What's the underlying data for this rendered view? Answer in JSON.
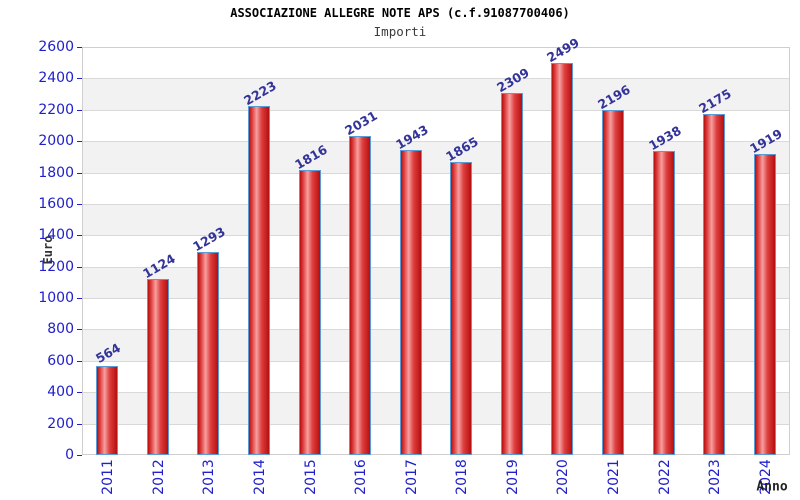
{
  "chart_data": {
    "type": "bar",
    "title": "ASSOCIAZIONE ALLEGRE NOTE APS (c.f.91087700406)",
    "subtitle": "Importi",
    "xlabel": "Anno",
    "ylabel": "Euro",
    "categories": [
      "2011",
      "2012",
      "2013",
      "2014",
      "2015",
      "2016",
      "2017",
      "2018",
      "2019",
      "2020",
      "2021",
      "2022",
      "2023",
      "2024"
    ],
    "values": [
      564,
      1124,
      1293,
      2223,
      1816,
      2031,
      1943,
      1865,
      2309,
      2499,
      2196,
      1938,
      2175,
      1919
    ],
    "ylim": [
      0,
      2600
    ],
    "ytick_step": 200,
    "grid": "on",
    "legend": "none",
    "colors": {
      "axis_tick_label": "#2020cc",
      "value_label": "#333399",
      "bar_border": "#5b9bd5",
      "bar_dark": "#b50f0f",
      "bar_mid": "#e04040",
      "bar_highlight": "#f5a0a0",
      "band": "#f2f2f2",
      "gridline": "#d9d9d9",
      "plot_border": "#cfcfcf",
      "title": "#000000",
      "subtitle": "#3c3c3c",
      "axis_title": "#333333"
    }
  }
}
